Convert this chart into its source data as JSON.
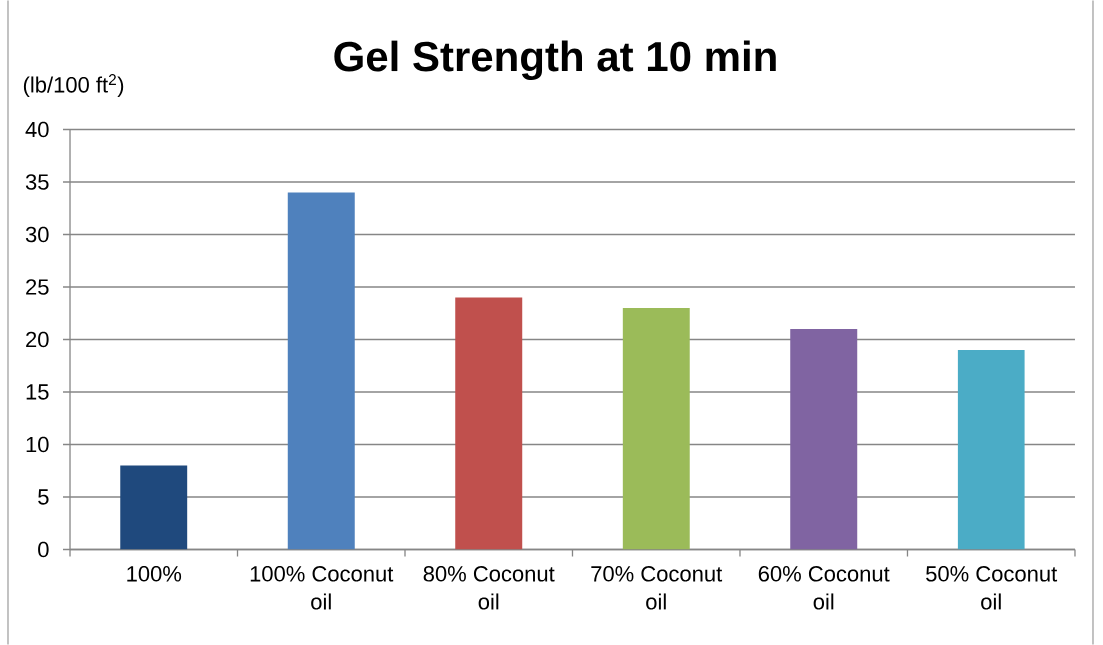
{
  "chart_data": {
    "type": "bar",
    "title": "Gel Strength at 10 min",
    "ylabel": "(lb/100 ft$^{2}$)",
    "categories": [
      "100%",
      "100% Coconut oil",
      "80% Coconut oil",
      "70% Coconut oil",
      "60% Coconut oil",
      "50% Coconut oil"
    ],
    "values": [
      8,
      34,
      24,
      23,
      21,
      19
    ],
    "colors": [
      "#1f497d",
      "#4f81bd",
      "#c0504d",
      "#9bbb59",
      "#8064a2",
      "#4bacc6"
    ],
    "ylim": [
      0,
      40
    ],
    "yticks": [
      0,
      5,
      10,
      15,
      20,
      25,
      30,
      35,
      40
    ],
    "grid": "y"
  }
}
